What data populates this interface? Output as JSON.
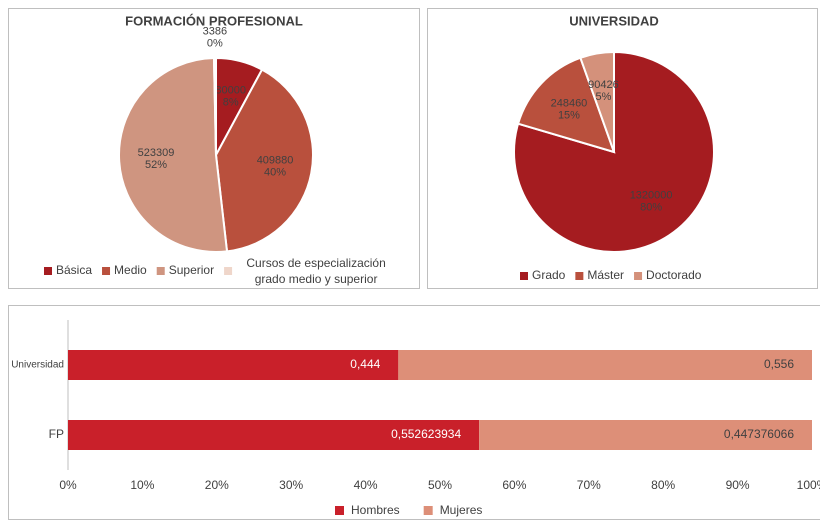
{
  "chart_data": [
    {
      "type": "pie",
      "title": "FORMACIÓN PROFESIONAL",
      "categories": [
        "Básica",
        "Medio",
        "Superior",
        "Cursos de especialización grado medio y superior"
      ],
      "values": [
        80000,
        409880,
        523309,
        3386
      ],
      "percent_labels": [
        "8%",
        "40%",
        "52%",
        "0%"
      ],
      "colors": [
        "#a51c20",
        "#b9503d",
        "#cf9580",
        "#efd6ca"
      ],
      "legend": "bottom"
    },
    {
      "type": "pie",
      "title": "UNIVERSIDAD",
      "categories": [
        "Grado",
        "Máster",
        "Doctorado"
      ],
      "values": [
        1320000,
        248460,
        90426
      ],
      "percent_labels": [
        "80%",
        "15%",
        "5%"
      ],
      "colors": [
        "#a51c20",
        "#b9503d",
        "#d4917b"
      ],
      "legend": "bottom"
    },
    {
      "type": "bar",
      "orientation": "horizontal",
      "stacked": true,
      "categories": [
        "Universidad",
        "FP"
      ],
      "series": [
        {
          "name": "Hombres",
          "color": "#c9202a",
          "values": [
            0.444,
            0.552623934
          ],
          "value_labels": [
            "0,444",
            "0,552623934"
          ]
        },
        {
          "name": "Mujeres",
          "color": "#dd8f78",
          "values": [
            0.556,
            0.447376066
          ],
          "value_labels": [
            "0,556",
            "0,447376066"
          ]
        }
      ],
      "xlim": [
        0,
        1
      ],
      "xticks": [
        {
          "value": 0,
          "label": "0%"
        },
        {
          "value": 0.1,
          "label": "10%"
        },
        {
          "value": 0.2,
          "label": "20%"
        },
        {
          "value": 0.3,
          "label": "30%"
        },
        {
          "value": 0.4,
          "label": "40%"
        },
        {
          "value": 0.5,
          "label": "50%"
        },
        {
          "value": 0.6,
          "label": "60%"
        },
        {
          "value": 0.7,
          "label": "70%"
        },
        {
          "value": 0.8,
          "label": "80%"
        },
        {
          "value": 0.9,
          "label": "90%"
        },
        {
          "value": 1,
          "label": "100%"
        }
      ],
      "legend": "bottom"
    }
  ]
}
